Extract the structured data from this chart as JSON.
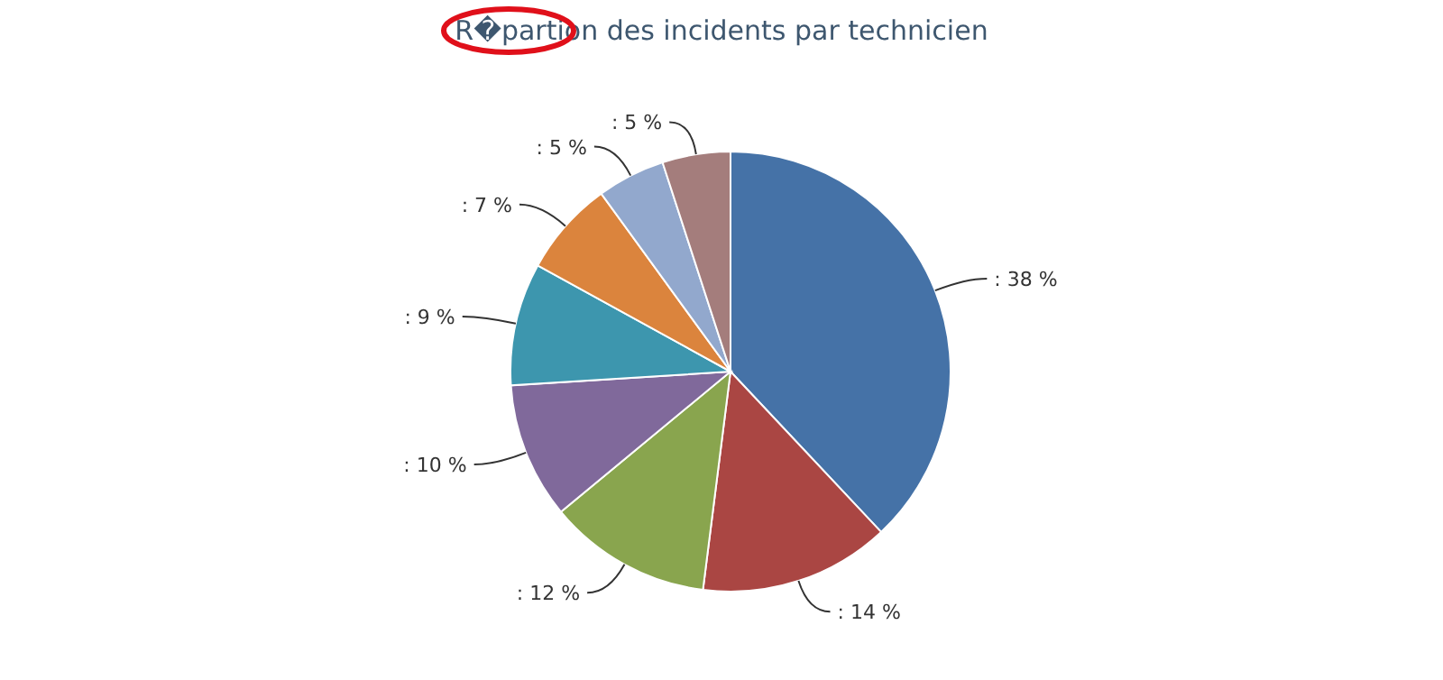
{
  "chart_data": {
    "type": "pie",
    "title": "R�partion des incidents par technicien",
    "categories": [
      null,
      null,
      null,
      null,
      null,
      null,
      null,
      null
    ],
    "values": [
      38,
      14,
      12,
      10,
      9,
      7,
      5,
      5
    ],
    "colors": [
      "#4572a7",
      "#aa4643",
      "#89a54e",
      "#80699b",
      "#3d96ae",
      "#db843d",
      "#92a8cd",
      "#a47d7c"
    ],
    "value_labels": [
      ": 38 %",
      ": 14 %",
      ": 12 %",
      ": 10 %",
      ": 9 %",
      ": 7 %",
      ": 5 %",
      ": 5 %"
    ],
    "legend": false
  }
}
